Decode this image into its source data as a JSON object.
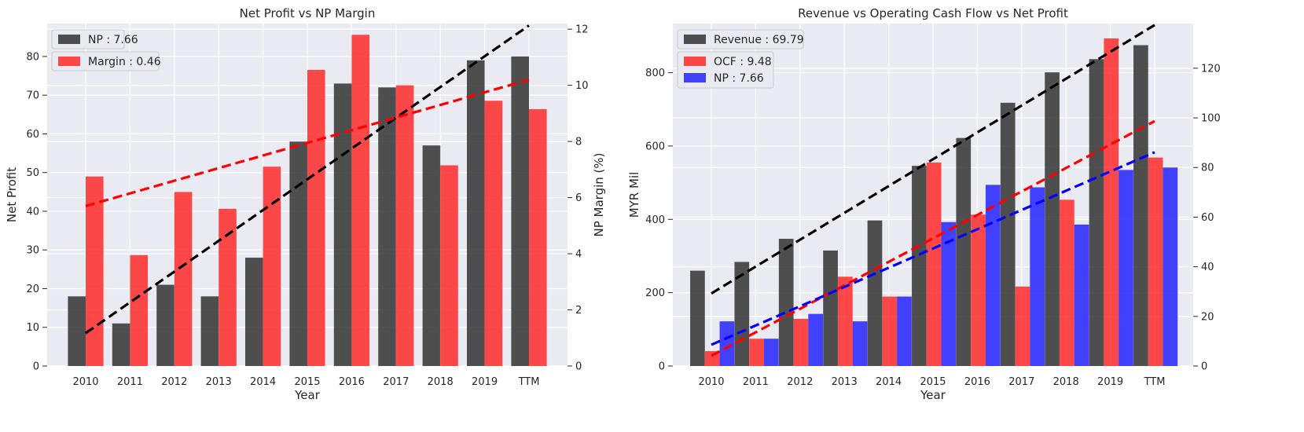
{
  "chart_data": [
    {
      "type": "bar",
      "title": "Net Profit vs NP Margin",
      "xlabel": "Year",
      "ylabel": "Net Profit",
      "ylabel_right": "NP Margin (%)",
      "categories": [
        "2010",
        "2011",
        "2012",
        "2013",
        "2014",
        "2015",
        "2016",
        "2017",
        "2018",
        "2019",
        "TTM"
      ],
      "ylim": [
        0,
        88.5
      ],
      "ylim_right": [
        0,
        12.2
      ],
      "yticks": [
        0,
        10,
        20,
        30,
        40,
        50,
        60,
        70,
        80
      ],
      "yticks_right": [
        0,
        2,
        4,
        6,
        8,
        10,
        12
      ],
      "series": [
        {
          "name": "NP : 7.66",
          "axis": "left",
          "color": "#333333",
          "values": [
            18,
            11,
            21,
            18,
            28,
            58,
            73,
            72,
            57,
            79,
            80
          ]
        },
        {
          "name": "Margin : 0.46",
          "axis": "right",
          "color": "#ff2a2a",
          "values": [
            6.75,
            3.95,
            6.2,
            5.6,
            7.1,
            10.55,
            11.8,
            10.0,
            7.15,
            9.45,
            9.15
          ]
        }
      ],
      "trendlines": [
        {
          "axis": "left",
          "color": "#000000",
          "from": 8.5,
          "to": 88.0
        },
        {
          "axis": "right",
          "color": "#ff0000",
          "from": 5.7,
          "to": 10.2
        }
      ],
      "legend_position": "top-left",
      "grid": true
    },
    {
      "type": "bar",
      "title": "Revenue vs Operating Cash Flow vs Net Profit",
      "xlabel": "Year",
      "ylabel": "MYR Mil",
      "categories": [
        "2010",
        "2011",
        "2012",
        "2013",
        "2014",
        "2015",
        "2016",
        "2017",
        "2018",
        "2019",
        "TTM"
      ],
      "ylim": [
        0,
        934
      ],
      "ylim_right": [
        0,
        138
      ],
      "yticks": [
        0,
        200,
        400,
        600,
        800
      ],
      "yticks_right": [
        0,
        20,
        40,
        60,
        80,
        100,
        120
      ],
      "series": [
        {
          "name": "Revenue : 69.79",
          "axis": "left",
          "color": "#333333",
          "values": [
            260,
            284,
            347,
            315,
            397,
            546,
            622,
            718,
            801,
            837,
            875
          ]
        },
        {
          "name": "OCF : 9.48",
          "axis": "right",
          "color": "#ff2a2a",
          "values": [
            6,
            11,
            19,
            36,
            28,
            82,
            61,
            32,
            67,
            132,
            84
          ]
        },
        {
          "name": "NP : 7.66",
          "axis": "right",
          "color": "#2222ff",
          "values": [
            18,
            11,
            21,
            18,
            28,
            58,
            73,
            72,
            57,
            79,
            80
          ]
        }
      ],
      "trendlines": [
        {
          "axis": "left",
          "color": "#000000",
          "from": 198,
          "to": 930
        },
        {
          "axis": "left",
          "color": "#ff0000",
          "from": 28,
          "to": 668
        },
        {
          "axis": "left",
          "color": "#0000ff",
          "from": 58,
          "to": 583
        }
      ],
      "legend_position": "top-left",
      "grid": true
    }
  ]
}
